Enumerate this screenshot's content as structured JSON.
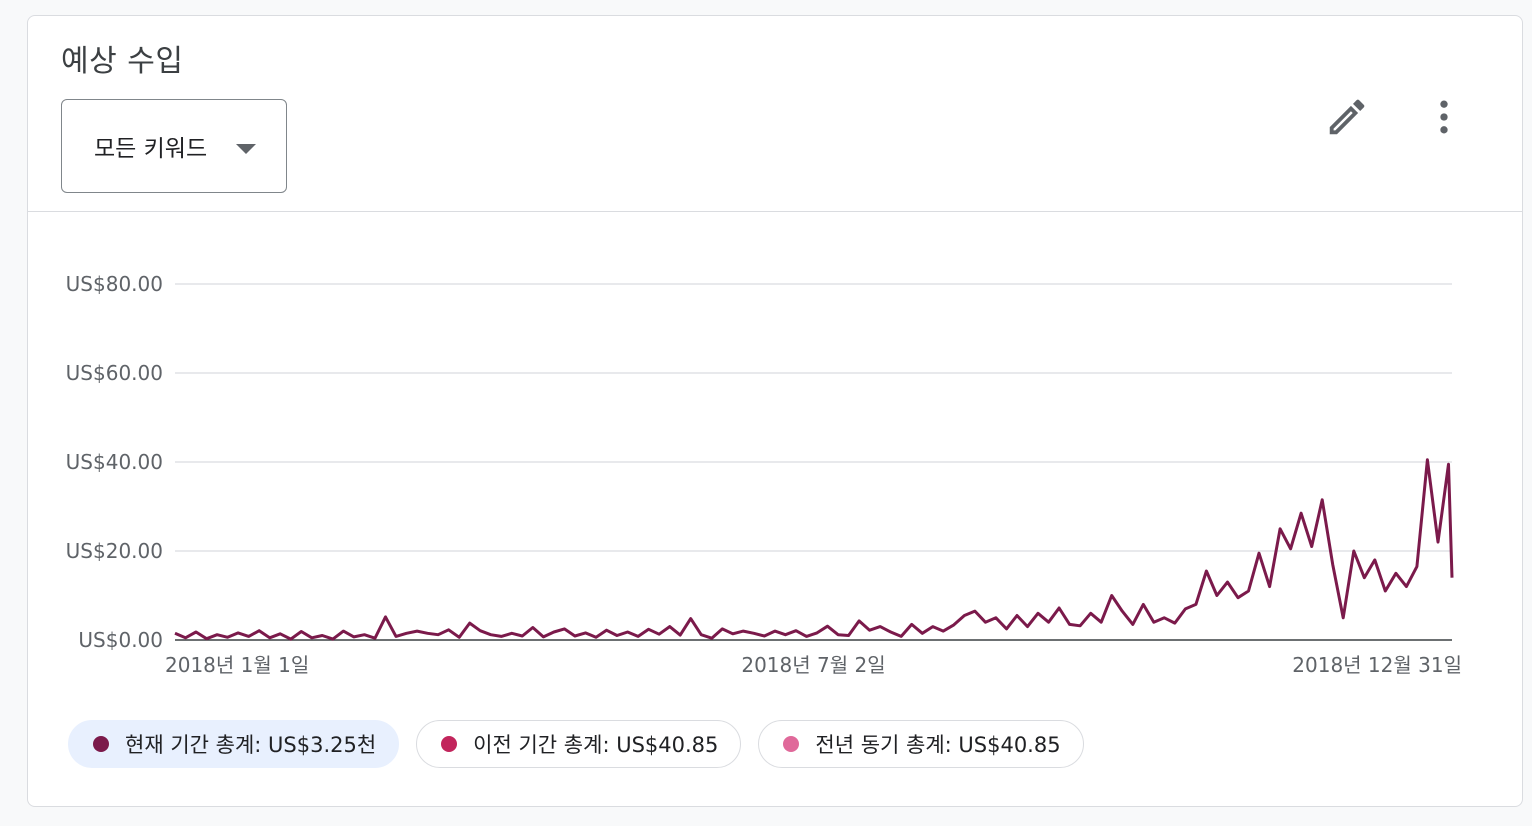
{
  "card": {
    "title": "예상 수입",
    "dropdown_label": "모든 키워드",
    "edit_icon": "edit-pencil-icon",
    "more_icon": "more-vert-icon"
  },
  "colors": {
    "series": "#7b1a4b",
    "axis": "#3c4043",
    "grid": "#dadce0"
  },
  "chips": [
    {
      "label": "현재 기간 총계: US$3.25천",
      "color": "#7b1a4b",
      "active": true
    },
    {
      "label": "이전 기간 총계: US$40.85",
      "color": "#c2255c",
      "active": false
    },
    {
      "label": "전년 동기 총계: US$40.85",
      "color": "#e0699a",
      "active": false
    }
  ],
  "chart_data": {
    "type": "line",
    "title": "",
    "xlabel": "",
    "ylabel": "",
    "ylim": [
      0,
      80
    ],
    "y_ticks": [
      "US$0.00",
      "US$20.00",
      "US$40.00",
      "US$60.00",
      "US$80.00"
    ],
    "y_tick_values": [
      0,
      20,
      40,
      60,
      80
    ],
    "x_range": [
      "2018-01-01",
      "2018-12-31"
    ],
    "x_ticks": [
      {
        "date": "2018-01-01",
        "label": "2018년 1월 1일"
      },
      {
        "date": "2018-07-02",
        "label": "2018년 7월 2일"
      },
      {
        "date": "2018-12-31",
        "label": "2018년 12월 31일"
      }
    ],
    "grid": true,
    "series": [
      {
        "color": "#7b1a4b",
        "points": [
          [
            "2018-01-01",
            1.5
          ],
          [
            "2018-01-04",
            0.5
          ],
          [
            "2018-01-07",
            1.8
          ],
          [
            "2018-01-10",
            0.3
          ],
          [
            "2018-01-13",
            1.2
          ],
          [
            "2018-01-16",
            0.6
          ],
          [
            "2018-01-19",
            1.6
          ],
          [
            "2018-01-22",
            0.8
          ],
          [
            "2018-01-25",
            2.1
          ],
          [
            "2018-01-28",
            0.5
          ],
          [
            "2018-01-31",
            1.4
          ],
          [
            "2018-02-03",
            0.2
          ],
          [
            "2018-02-06",
            1.9
          ],
          [
            "2018-02-09",
            0.5
          ],
          [
            "2018-02-12",
            1.0
          ],
          [
            "2018-02-15",
            0.2
          ],
          [
            "2018-02-18",
            2.0
          ],
          [
            "2018-02-21",
            0.7
          ],
          [
            "2018-02-24",
            1.2
          ],
          [
            "2018-02-27",
            0.4
          ],
          [
            "2018-03-02",
            5.2
          ],
          [
            "2018-03-05",
            0.8
          ],
          [
            "2018-03-08",
            1.5
          ],
          [
            "2018-03-11",
            2.0
          ],
          [
            "2018-03-14",
            1.5
          ],
          [
            "2018-03-17",
            1.2
          ],
          [
            "2018-03-20",
            2.3
          ],
          [
            "2018-03-23",
            0.6
          ],
          [
            "2018-03-26",
            3.8
          ],
          [
            "2018-03-29",
            2.1
          ],
          [
            "2018-04-01",
            1.2
          ],
          [
            "2018-04-04",
            0.8
          ],
          [
            "2018-04-07",
            1.5
          ],
          [
            "2018-04-10",
            0.9
          ],
          [
            "2018-04-13",
            2.8
          ],
          [
            "2018-04-16",
            0.7
          ],
          [
            "2018-04-19",
            1.8
          ],
          [
            "2018-04-22",
            2.5
          ],
          [
            "2018-04-25",
            0.9
          ],
          [
            "2018-04-28",
            1.6
          ],
          [
            "2018-05-01",
            0.6
          ],
          [
            "2018-05-04",
            2.2
          ],
          [
            "2018-05-07",
            1.0
          ],
          [
            "2018-05-10",
            1.8
          ],
          [
            "2018-05-13",
            0.8
          ],
          [
            "2018-05-16",
            2.4
          ],
          [
            "2018-05-19",
            1.3
          ],
          [
            "2018-05-22",
            3.0
          ],
          [
            "2018-05-25",
            1.1
          ],
          [
            "2018-05-28",
            4.8
          ],
          [
            "2018-05-31",
            1.2
          ],
          [
            "2018-06-03",
            0.4
          ],
          [
            "2018-06-06",
            2.5
          ],
          [
            "2018-06-09",
            1.4
          ],
          [
            "2018-06-12",
            2.0
          ],
          [
            "2018-06-15",
            1.5
          ],
          [
            "2018-06-18",
            0.9
          ],
          [
            "2018-06-21",
            2.0
          ],
          [
            "2018-06-24",
            1.2
          ],
          [
            "2018-06-27",
            2.1
          ],
          [
            "2018-06-30",
            0.8
          ],
          [
            "2018-07-03",
            1.6
          ],
          [
            "2018-07-06",
            3.1
          ],
          [
            "2018-07-09",
            1.2
          ],
          [
            "2018-07-12",
            1.0
          ],
          [
            "2018-07-15",
            4.3
          ],
          [
            "2018-07-18",
            2.2
          ],
          [
            "2018-07-21",
            3.0
          ],
          [
            "2018-07-24",
            1.8
          ],
          [
            "2018-07-27",
            0.8
          ],
          [
            "2018-07-30",
            3.5
          ],
          [
            "2018-08-02",
            1.5
          ],
          [
            "2018-08-05",
            3.0
          ],
          [
            "2018-08-08",
            2.0
          ],
          [
            "2018-08-11",
            3.4
          ],
          [
            "2018-08-14",
            5.5
          ],
          [
            "2018-08-17",
            6.5
          ],
          [
            "2018-08-20",
            4.0
          ],
          [
            "2018-08-23",
            5.0
          ],
          [
            "2018-08-26",
            2.5
          ],
          [
            "2018-08-29",
            5.5
          ],
          [
            "2018-09-01",
            3.0
          ],
          [
            "2018-09-04",
            6.0
          ],
          [
            "2018-09-07",
            4.0
          ],
          [
            "2018-09-10",
            7.2
          ],
          [
            "2018-09-13",
            3.5
          ],
          [
            "2018-09-16",
            3.2
          ],
          [
            "2018-09-19",
            6.0
          ],
          [
            "2018-09-22",
            4.0
          ],
          [
            "2018-09-25",
            10.0
          ],
          [
            "2018-09-28",
            6.5
          ],
          [
            "2018-10-01",
            3.5
          ],
          [
            "2018-10-04",
            8.0
          ],
          [
            "2018-10-07",
            4.0
          ],
          [
            "2018-10-10",
            5.0
          ],
          [
            "2018-10-13",
            3.8
          ],
          [
            "2018-10-16",
            7.0
          ],
          [
            "2018-10-19",
            8.0
          ],
          [
            "2018-10-22",
            15.5
          ],
          [
            "2018-10-25",
            10.0
          ],
          [
            "2018-10-28",
            13.0
          ],
          [
            "2018-10-31",
            9.5
          ],
          [
            "2018-11-03",
            11.0
          ],
          [
            "2018-11-06",
            19.5
          ],
          [
            "2018-11-09",
            12.0
          ],
          [
            "2018-11-12",
            25.0
          ],
          [
            "2018-11-15",
            20.5
          ],
          [
            "2018-11-18",
            28.5
          ],
          [
            "2018-11-21",
            21.0
          ],
          [
            "2018-11-24",
            31.5
          ],
          [
            "2018-11-27",
            17.0
          ],
          [
            "2018-11-30",
            5.0
          ],
          [
            "2018-12-03",
            20.0
          ],
          [
            "2018-12-06",
            14.0
          ],
          [
            "2018-12-09",
            18.0
          ],
          [
            "2018-12-12",
            11.0
          ],
          [
            "2018-12-15",
            15.0
          ],
          [
            "2018-12-18",
            12.0
          ],
          [
            "2018-12-21",
            16.5
          ],
          [
            "2018-12-24",
            40.5
          ],
          [
            "2018-12-27",
            22.0
          ],
          [
            "2018-12-30",
            39.5
          ],
          [
            "2018-12-31",
            14.0
          ]
        ]
      }
    ]
  }
}
